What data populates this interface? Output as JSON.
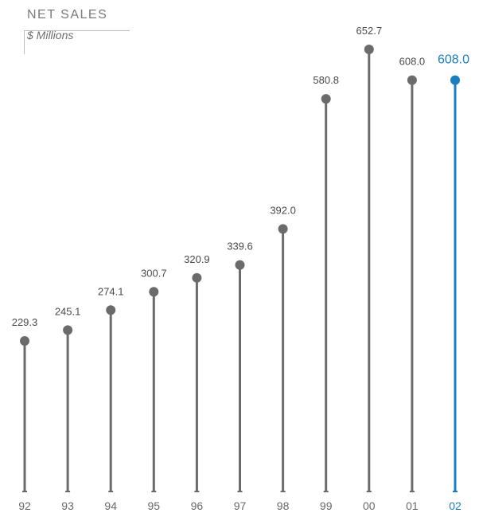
{
  "chart_data": {
    "type": "bar",
    "title": "NET SALES",
    "subtitle": "$ Millions",
    "categories": [
      "92",
      "93",
      "94",
      "95",
      "96",
      "97",
      "98",
      "99",
      "00",
      "01",
      "02"
    ],
    "values": [
      229.3,
      245.1,
      274.1,
      300.7,
      320.9,
      339.6,
      392.0,
      580.8,
      652.7,
      608.0,
      608.0
    ],
    "value_labels": [
      "229.3",
      "245.1",
      "274.1",
      "300.7",
      "320.9",
      "339.6",
      "392.0",
      "580.8",
      "652.7",
      "608.0",
      "608.0"
    ],
    "highlight_index": 10,
    "ylim": [
      0,
      652.7
    ],
    "grid": false,
    "colors": {
      "default": "#6b6b6b",
      "highlight": "#1a7fc1",
      "label": "#4a4a4a"
    }
  }
}
